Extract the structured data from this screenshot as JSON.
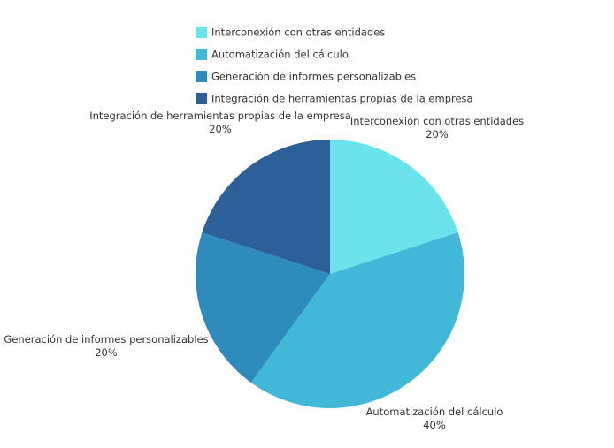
{
  "chart_data": {
    "type": "pie",
    "title": "",
    "slices": [
      {
        "label": "Interconexión con otras entidades",
        "value": 20,
        "pct_label": "20%",
        "color": "#6ae4ea"
      },
      {
        "label": "Automatización del cálculo",
        "value": 40,
        "pct_label": "40%",
        "color": "#41b8d8"
      },
      {
        "label": "Generación de informes personalizables",
        "value": 20,
        "pct_label": "20%",
        "color": "#2e8bbc"
      },
      {
        "label": "Integración de herramientas propias de la empresa",
        "value": 20,
        "pct_label": "20%",
        "color": "#2d5f98"
      }
    ],
    "legend_placement": "top-center",
    "start_angle": "12 o'clock",
    "direction": "clockwise"
  }
}
